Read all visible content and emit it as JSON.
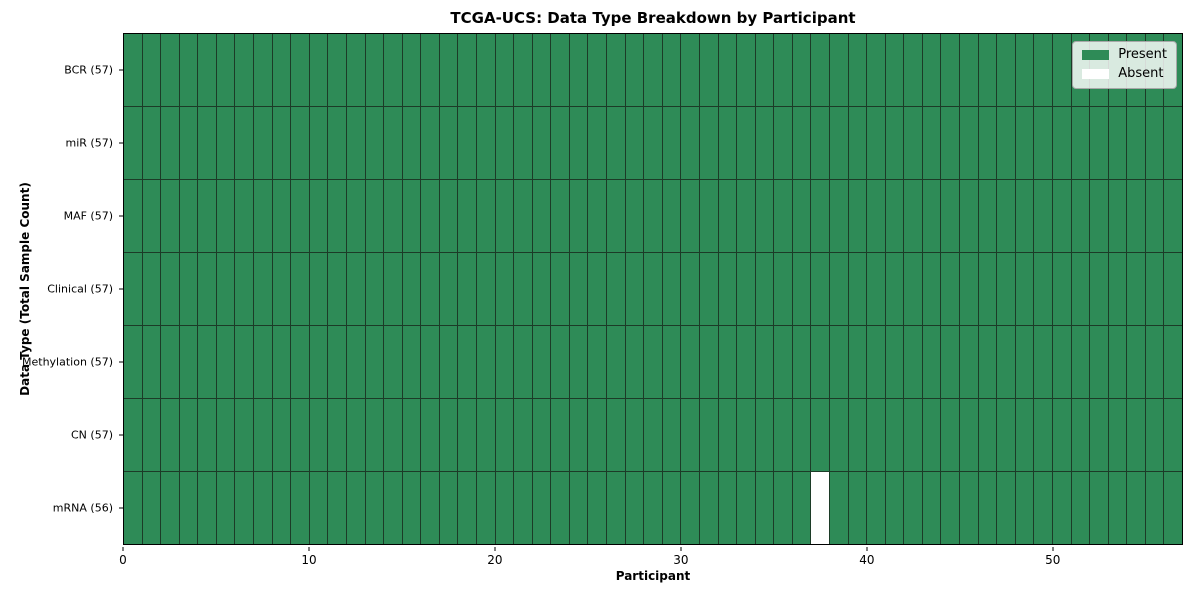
{
  "chart_data": {
    "type": "heatmap",
    "title": "TCGA-UCS: Data Type Breakdown by Participant",
    "xlabel": "Participant",
    "ylabel": "Data Type (Total Sample Count)",
    "x_ticks": [
      0,
      10,
      20,
      30,
      40,
      50
    ],
    "x_range": [
      0,
      57
    ],
    "n_participants": 57,
    "rows": [
      {
        "label": "BCR (57)",
        "data_type": "BCR",
        "present_count": 57,
        "absent_participants": []
      },
      {
        "label": "miR (57)",
        "data_type": "miR",
        "present_count": 57,
        "absent_participants": []
      },
      {
        "label": "MAF (57)",
        "data_type": "MAF",
        "present_count": 57,
        "absent_participants": []
      },
      {
        "label": "Clinical (57)",
        "data_type": "Clinical",
        "present_count": 57,
        "absent_participants": []
      },
      {
        "label": "Methylation (57)",
        "data_type": "Methylation",
        "present_count": 57,
        "absent_participants": []
      },
      {
        "label": "CN (57)",
        "data_type": "CN",
        "present_count": 57,
        "absent_participants": []
      },
      {
        "label": "mRNA (56)",
        "data_type": "mRNA",
        "present_count": 56,
        "absent_participants": [
          37
        ]
      }
    ],
    "colors": {
      "present": "#2e8b57",
      "absent": "#ffffff",
      "gridline": "#1c3b27"
    },
    "legend": {
      "position": "upper right",
      "items": [
        {
          "label": "Present",
          "color": "#2e8b57"
        },
        {
          "label": "Absent",
          "color": "#ffffff"
        }
      ]
    }
  }
}
